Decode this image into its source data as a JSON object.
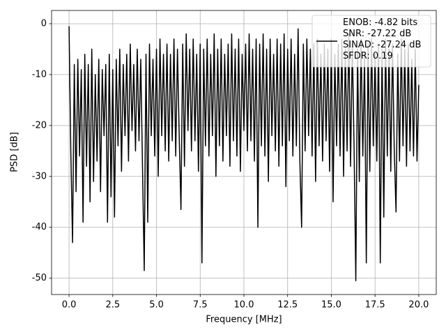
{
  "chart_data": {
    "type": "line",
    "xlabel": "Frequency [MHz]",
    "ylabel": "PSD [dB]",
    "x": [
      0,
      0.1,
      0.2,
      0.3,
      0.4,
      0.5,
      0.6,
      0.7,
      0.8,
      0.9,
      1,
      1.1,
      1.2,
      1.3,
      1.4,
      1.5,
      1.6,
      1.7,
      1.8,
      1.9,
      2,
      2.1,
      2.2,
      2.3,
      2.4,
      2.5,
      2.6,
      2.7,
      2.8,
      2.9,
      3,
      3.1,
      3.2,
      3.3,
      3.4,
      3.5,
      3.6,
      3.7,
      3.8,
      3.9,
      4,
      4.1,
      4.2,
      4.3,
      4.4,
      4.5,
      4.6,
      4.7,
      4.8,
      4.9,
      5,
      5.1,
      5.2,
      5.3,
      5.4,
      5.5,
      5.6,
      5.7,
      5.8,
      5.9,
      6,
      6.1,
      6.2,
      6.3,
      6.4,
      6.5,
      6.6,
      6.7,
      6.8,
      6.9,
      7,
      7.1,
      7.2,
      7.3,
      7.4,
      7.5,
      7.6,
      7.7,
      7.8,
      7.9,
      8,
      8.1,
      8.2,
      8.3,
      8.4,
      8.5,
      8.6,
      8.7,
      8.8,
      8.9,
      9,
      9.1,
      9.2,
      9.3,
      9.4,
      9.5,
      9.6,
      9.7,
      9.8,
      9.9,
      10,
      10.1,
      10.2,
      10.3,
      10.4,
      10.5,
      10.6,
      10.7,
      10.8,
      10.9,
      11,
      11.1,
      11.2,
      11.3,
      11.4,
      11.5,
      11.6,
      11.7,
      11.8,
      11.9,
      12,
      12.1,
      12.2,
      12.3,
      12.4,
      12.5,
      12.6,
      12.7,
      12.8,
      12.9,
      13,
      13.1,
      13.2,
      13.3,
      13.4,
      13.5,
      13.6,
      13.7,
      13.8,
      13.9,
      14,
      14.1,
      14.2,
      14.3,
      14.4,
      14.5,
      14.6,
      14.7,
      14.8,
      14.9,
      15,
      15.1,
      15.2,
      15.3,
      15.4,
      15.5,
      15.6,
      15.7,
      15.8,
      15.9,
      16,
      16.1,
      16.2,
      16.3,
      16.4,
      16.5,
      16.6,
      16.7,
      16.8,
      16.9,
      17,
      17.1,
      17.2,
      17.3,
      17.4,
      17.5,
      17.6,
      17.7,
      17.8,
      17.9,
      18,
      18.1,
      18.2,
      18.3,
      18.4,
      18.5,
      18.6,
      18.7,
      18.8,
      18.9,
      19,
      19.1,
      19.2,
      19.3,
      19.4,
      19.5,
      19.6,
      19.7,
      19.8,
      19.9,
      20
    ],
    "series": [
      {
        "name": "ENOB: -4.82 bits\nSNR: -27.22 dB\nSINAD: -27.24 dB\nSFDR: 0.19",
        "color": "#000000",
        "values": [
          -0.5,
          -25,
          -43,
          -8,
          -33,
          -7,
          -26,
          -9,
          -39,
          -6,
          -28,
          -8,
          -35,
          -5,
          -31,
          -10,
          -27,
          -7,
          -33,
          -9,
          -22,
          -8,
          -39,
          -6,
          -34,
          -9,
          -38,
          -7,
          -24,
          -5,
          -29,
          -8,
          -22,
          -6,
          -27,
          -4,
          -21,
          -8,
          -25,
          -5,
          -23,
          -7,
          -28,
          -48.5,
          -6,
          -39,
          -4,
          -22,
          -7,
          -26,
          -5,
          -30,
          -3,
          -22,
          -6,
          -25,
          -4,
          -27,
          -6,
          -23,
          -3,
          -26,
          -5,
          -22,
          -36.5,
          -4,
          -28,
          -2,
          -21,
          -5,
          -25,
          -3,
          -23,
          -6,
          -29,
          -4,
          -47,
          -5,
          -24,
          -3,
          -26,
          -6,
          -22,
          -2,
          -30,
          -5,
          -24,
          -3,
          -27,
          -6,
          -22,
          -4,
          -28,
          -2,
          -23,
          -5,
          -26,
          -3,
          -29,
          -6,
          -21,
          -4,
          -25,
          -2,
          -23,
          -5,
          -27,
          -3,
          -40,
          -4,
          -24,
          -2,
          -26,
          -5,
          -31,
          -3,
          -22,
          -6,
          -25,
          -3,
          -28,
          -4,
          -24,
          -2,
          -32,
          -5,
          -23,
          -3,
          -26,
          -6,
          -24,
          -1,
          -27,
          -40,
          -4,
          -25,
          -3,
          -22,
          -5,
          -26,
          -4,
          -31,
          -3,
          -24,
          -6,
          -27,
          -4,
          -23,
          -5,
          -29,
          -3,
          -35,
          -6,
          -24,
          -4,
          -26,
          -3,
          -30,
          -5,
          -25,
          -2,
          -28,
          -4,
          -24,
          -50.5,
          -5,
          -31,
          -3,
          -26,
          -6,
          -47,
          -4,
          -29,
          -3,
          -24,
          -6,
          -27,
          -4,
          -47,
          -5,
          -38,
          -3,
          -26,
          -5,
          -29,
          -4,
          -25,
          -37,
          -6,
          -27,
          -3,
          -24,
          -5,
          -28,
          -4,
          -25,
          -7,
          -26,
          -5,
          -27,
          -12
        ]
      }
    ],
    "xlim": [
      -1.0,
      21.0
    ],
    "ylim": [
      -53.2,
      2.6
    ],
    "xticks": [
      {
        "value": 0,
        "label": "0.0"
      },
      2.5,
      {
        "value": 5,
        "label": "5.0"
      },
      7.5,
      {
        "value": 10,
        "label": "10.0"
      },
      12.5,
      {
        "value": 15,
        "label": "15.0"
      },
      17.5,
      {
        "value": 20,
        "label": "20.0"
      }
    ],
    "yticks": [
      0,
      -10,
      -20,
      -30,
      -40,
      -50
    ],
    "grid": true,
    "legend": "upper right"
  }
}
